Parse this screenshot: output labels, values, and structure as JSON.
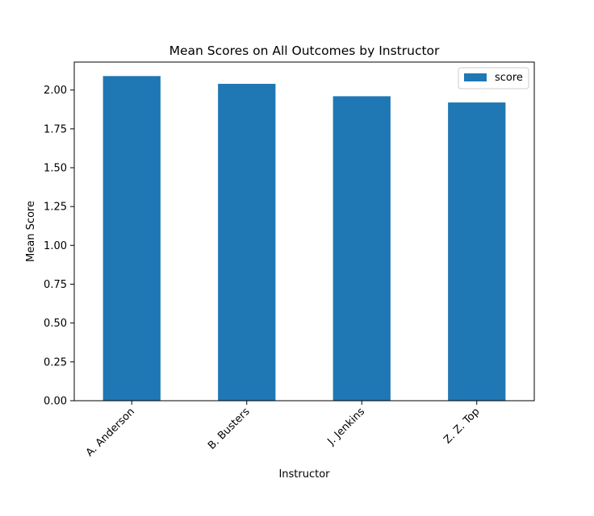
{
  "chart_data": {
    "type": "bar",
    "title": "Mean Scores on All Outcomes by Instructor",
    "xlabel": "Instructor",
    "ylabel": "Mean Score",
    "categories": [
      "A. Anderson",
      "B. Busters",
      "J. Jenkins",
      "Z. Z. Top"
    ],
    "series": [
      {
        "name": "score",
        "values": [
          2.09,
          2.04,
          1.96,
          1.92
        ],
        "color": "#1f77b4"
      }
    ],
    "ylim": [
      0,
      2.18
    ],
    "yticks": [
      "0.00",
      "0.25",
      "0.50",
      "0.75",
      "1.00",
      "1.25",
      "1.50",
      "1.75",
      "2.00"
    ],
    "grid": false,
    "legend_position": "top-right"
  }
}
